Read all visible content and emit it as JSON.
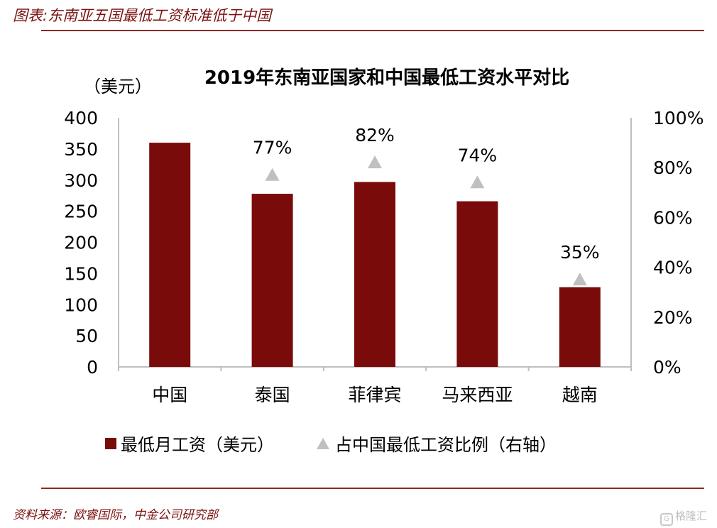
{
  "header": {
    "title": "图表:东南亚五国最低工资标准低于中国",
    "source": "资料来源：欧睿国际，中金公司研究部",
    "watermark": "格隆汇"
  },
  "colors": {
    "bar": "#7a0b0b",
    "marker": "#c0c0c0",
    "accent": "#7a1210",
    "axis": "#bfbfbf"
  },
  "chart_data": {
    "type": "bar",
    "title": "2019年东南亚国家和中国最低工资水平对比",
    "y_unit_label": "（美元）",
    "categories": [
      "中国",
      "泰国",
      "菲律宾",
      "马来西亚",
      "越南"
    ],
    "series": [
      {
        "name": "最低月工资（美元）",
        "type": "bar",
        "axis": "left",
        "values": [
          360,
          278,
          297,
          266,
          128
        ]
      },
      {
        "name": "占中国最低工资比例（右轴）",
        "type": "scatter",
        "marker": "triangle",
        "axis": "right",
        "values": [
          null,
          0.77,
          0.82,
          0.74,
          0.35
        ],
        "labels": [
          "",
          "77%",
          "82%",
          "74%",
          "35%"
        ]
      }
    ],
    "ylim": [
      0,
      400
    ],
    "yticks": [
      0,
      50,
      100,
      150,
      200,
      250,
      300,
      350,
      400
    ],
    "y2lim": [
      0,
      1
    ],
    "y2ticks": [
      "0%",
      "20%",
      "40%",
      "60%",
      "80%",
      "100%"
    ],
    "legend_position": "bottom"
  }
}
